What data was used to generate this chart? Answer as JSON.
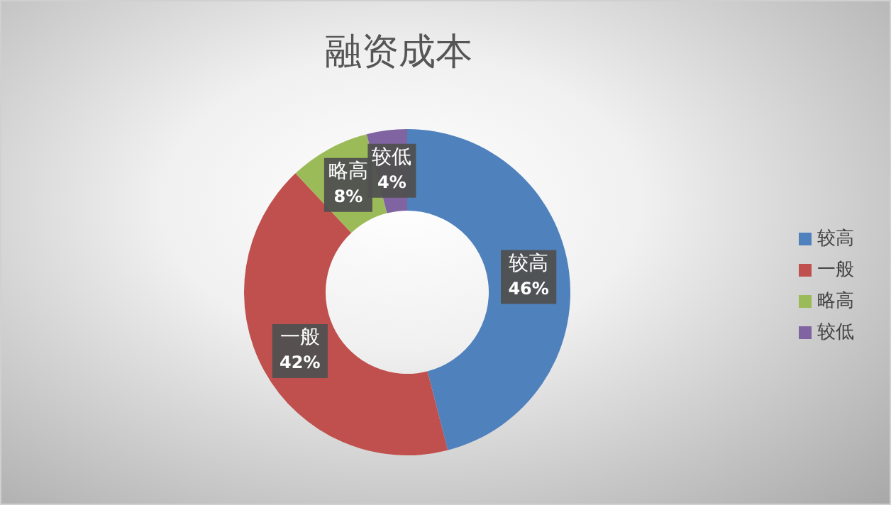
{
  "chart_data": {
    "type": "donut",
    "title": "融资成本",
    "categories": [
      "较高",
      "一般",
      "略高",
      "较低"
    ],
    "values": [
      46,
      42,
      8,
      4
    ],
    "colors": [
      "#4f81bd",
      "#c0504d",
      "#9bbb59",
      "#8064a2"
    ],
    "value_labels": [
      "46%",
      "42%",
      "8%",
      "4%"
    ],
    "legend": "right"
  }
}
